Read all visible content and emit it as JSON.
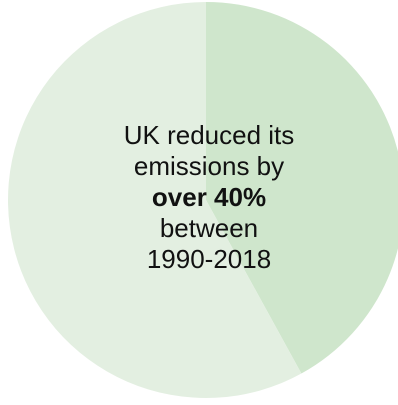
{
  "chart_data": {
    "type": "pie",
    "slices": [
      {
        "value": 42,
        "color": "#cfe6cc"
      },
      {
        "value": 58,
        "color": "#e3efe1"
      }
    ],
    "annotation": {
      "line1": "UK reduced its",
      "line2": "emissions by",
      "line3": "over 40%",
      "line4": "between",
      "line5": "1990-2018"
    }
  }
}
